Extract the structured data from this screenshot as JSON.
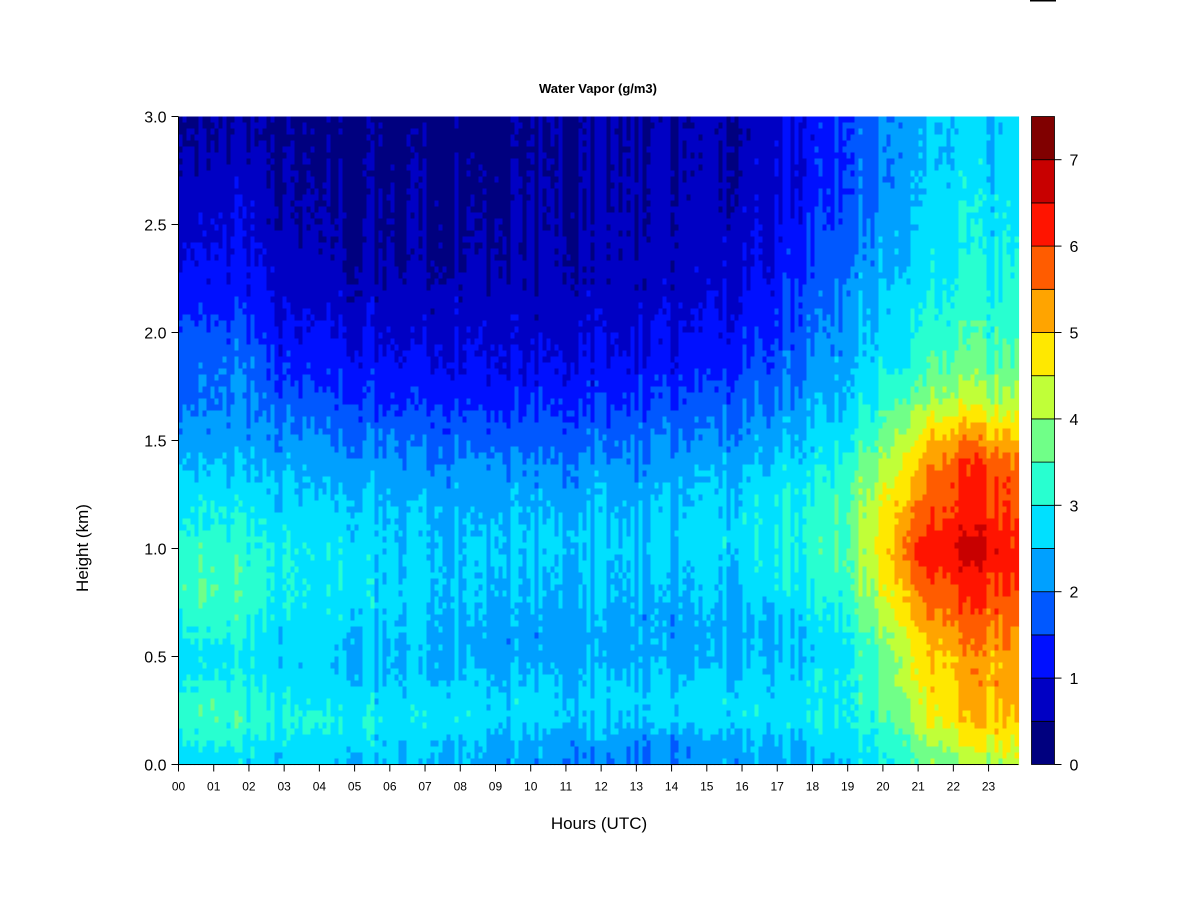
{
  "chart_data": {
    "type": "heatmap",
    "title": "Water Vapor (g/m3)",
    "xlabel": "Hours (UTC)",
    "ylabel": "Height (km)",
    "xlim": [
      0,
      23.85
    ],
    "ylim": [
      0,
      3.0
    ],
    "x_ticks": [
      "00",
      "01",
      "02",
      "03",
      "04",
      "05",
      "06",
      "07",
      "08",
      "09",
      "10",
      "11",
      "12",
      "13",
      "14",
      "15",
      "16",
      "17",
      "18",
      "19",
      "20",
      "21",
      "22",
      "23"
    ],
    "y_ticks": [
      "0.0",
      "0.5",
      "1.0",
      "1.5",
      "2.0",
      "2.5",
      "3.0"
    ],
    "colorbar": {
      "range": [
        0,
        7.5
      ],
      "step": 0.5,
      "ticks": [
        "0",
        "1",
        "2",
        "3",
        "4",
        "5",
        "6",
        "7"
      ],
      "colors": [
        "#00007f",
        "#0000c4",
        "#0010ff",
        "#0058ff",
        "#00a0ff",
        "#00e0ff",
        "#28ffd0",
        "#70ff88",
        "#c0ff38",
        "#ffe800",
        "#ffa400",
        "#ff5c00",
        "#ff1400",
        "#c80000",
        "#800000"
      ]
    },
    "grid": false,
    "hours": [
      0,
      1,
      2,
      3,
      4,
      5,
      6,
      7,
      8,
      9,
      10,
      11,
      12,
      13,
      14,
      15,
      16,
      17,
      18,
      19,
      20,
      21,
      22,
      23,
      23.85
    ],
    "heights": [
      0,
      0.1,
      0.2,
      0.3,
      0.4,
      0.5,
      0.6,
      0.7,
      0.8,
      0.9,
      1.0,
      1.1,
      1.2,
      1.3,
      1.4,
      1.5,
      1.6,
      1.7,
      1.8,
      1.9,
      2.0,
      2.1,
      2.2,
      2.3,
      2.4,
      2.5,
      2.6,
      2.7,
      2.8,
      2.9,
      3.0
    ],
    "profiles": [
      {
        "hour": 0,
        "values": [
          2.8,
          3.0,
          3.2,
          3.2,
          3.0,
          2.8,
          3.0,
          3.2,
          3.4,
          3.4,
          3.3,
          3.1,
          2.9,
          2.7,
          2.5,
          2.3,
          2.1,
          2.0,
          2.0,
          1.9,
          1.7,
          1.5,
          1.3,
          1.2,
          1.0,
          0.9,
          0.8,
          0.7,
          0.6,
          0.6,
          0.5
        ]
      },
      {
        "hour": 1,
        "values": [
          2.8,
          3.1,
          3.5,
          3.5,
          3.1,
          2.9,
          3.2,
          3.5,
          3.6,
          3.5,
          3.4,
          3.1,
          3.0,
          2.8,
          2.6,
          2.4,
          2.2,
          2.0,
          2.0,
          1.9,
          1.7,
          1.5,
          1.3,
          1.2,
          1.1,
          1.0,
          0.9,
          0.8,
          0.7,
          0.6,
          0.5
        ]
      },
      {
        "hour": 2,
        "values": [
          2.7,
          2.9,
          3.2,
          3.1,
          2.9,
          2.8,
          2.9,
          3.1,
          3.2,
          3.2,
          3.1,
          3.0,
          2.8,
          2.6,
          2.4,
          2.2,
          2.1,
          2.0,
          1.9,
          1.8,
          1.6,
          1.4,
          1.2,
          1.1,
          1.0,
          0.9,
          0.8,
          0.7,
          0.6,
          0.5,
          0.5
        ]
      },
      {
        "hour": 3,
        "values": [
          2.6,
          2.8,
          3.0,
          2.9,
          2.7,
          2.6,
          2.7,
          2.8,
          2.9,
          2.9,
          2.9,
          2.8,
          2.6,
          2.5,
          2.3,
          2.1,
          1.9,
          1.6,
          1.4,
          1.2,
          1.0,
          0.9,
          0.8,
          0.7,
          0.6,
          0.5,
          0.5,
          0.4,
          0.4,
          0.3,
          0.3
        ]
      },
      {
        "hour": 4,
        "values": [
          2.6,
          2.8,
          3.0,
          2.8,
          2.6,
          2.6,
          2.7,
          2.8,
          2.8,
          2.8,
          2.8,
          2.7,
          2.6,
          2.4,
          2.2,
          2.0,
          1.8,
          1.5,
          1.3,
          1.2,
          1.0,
          0.9,
          0.7,
          0.6,
          0.5,
          0.5,
          0.4,
          0.4,
          0.3,
          0.3,
          0.3
        ]
      },
      {
        "hour": 5,
        "values": [
          2.6,
          2.8,
          3.0,
          2.8,
          2.6,
          2.5,
          2.6,
          2.7,
          2.8,
          2.8,
          2.8,
          2.7,
          2.6,
          2.4,
          2.2,
          2.0,
          1.7,
          1.5,
          1.3,
          1.1,
          1.0,
          0.8,
          0.7,
          0.6,
          0.5,
          0.5,
          0.4,
          0.4,
          0.4,
          0.3,
          0.3
        ]
      },
      {
        "hour": 6,
        "values": [
          2.6,
          2.7,
          2.9,
          2.8,
          2.6,
          2.5,
          2.6,
          2.7,
          2.7,
          2.7,
          2.7,
          2.6,
          2.5,
          2.4,
          2.2,
          2.0,
          1.7,
          1.4,
          1.3,
          1.1,
          0.9,
          0.8,
          0.7,
          0.6,
          0.5,
          0.5,
          0.5,
          0.4,
          0.4,
          0.4,
          0.3
        ]
      },
      {
        "hour": 7,
        "values": [
          2.5,
          2.7,
          2.9,
          2.8,
          2.6,
          2.5,
          2.6,
          2.6,
          2.7,
          2.7,
          2.6,
          2.6,
          2.5,
          2.3,
          2.1,
          1.9,
          1.7,
          1.4,
          1.2,
          1.1,
          0.9,
          0.8,
          0.7,
          0.6,
          0.5,
          0.5,
          0.5,
          0.5,
          0.4,
          0.4,
          0.4
        ]
      },
      {
        "hour": 8,
        "values": [
          2.5,
          2.6,
          2.9,
          2.8,
          2.6,
          2.4,
          2.4,
          2.5,
          2.6,
          2.6,
          2.6,
          2.5,
          2.4,
          2.3,
          2.1,
          1.9,
          1.6,
          1.4,
          1.2,
          1.0,
          0.9,
          0.8,
          0.7,
          0.6,
          0.5,
          0.5,
          0.4,
          0.4,
          0.4,
          0.3,
          0.3
        ]
      },
      {
        "hour": 9,
        "values": [
          2.3,
          2.4,
          2.7,
          2.7,
          2.5,
          2.3,
          2.3,
          2.4,
          2.5,
          2.5,
          2.6,
          2.5,
          2.4,
          2.3,
          2.1,
          1.8,
          1.6,
          1.3,
          1.1,
          1.0,
          0.9,
          0.8,
          0.7,
          0.6,
          0.5,
          0.5,
          0.4,
          0.4,
          0.3,
          0.3,
          0.3
        ]
      },
      {
        "hour": 10,
        "values": [
          2.2,
          2.3,
          2.7,
          2.7,
          2.5,
          2.3,
          2.2,
          2.3,
          2.4,
          2.5,
          2.6,
          2.5,
          2.4,
          2.2,
          2.0,
          1.8,
          1.5,
          1.3,
          1.1,
          0.9,
          0.8,
          0.7,
          0.6,
          0.6,
          0.5,
          0.5,
          0.5,
          0.5,
          0.4,
          0.4,
          0.4
        ]
      },
      {
        "hour": 11,
        "values": [
          2.1,
          2.2,
          2.6,
          2.6,
          2.5,
          2.3,
          2.3,
          2.4,
          2.5,
          2.5,
          2.6,
          2.5,
          2.4,
          2.2,
          2.0,
          1.8,
          1.6,
          1.3,
          1.1,
          1.0,
          0.9,
          0.8,
          0.7,
          0.6,
          0.6,
          0.5,
          0.5,
          0.5,
          0.5,
          0.5,
          0.5
        ]
      },
      {
        "hour": 12,
        "values": [
          2.0,
          2.2,
          2.6,
          2.7,
          2.5,
          2.3,
          2.3,
          2.4,
          2.5,
          2.5,
          2.6,
          2.5,
          2.4,
          2.3,
          2.1,
          1.8,
          1.6,
          1.4,
          1.2,
          1.0,
          0.9,
          0.8,
          0.7,
          0.6,
          0.6,
          0.6,
          0.5,
          0.5,
          0.5,
          0.5,
          0.5
        ]
      },
      {
        "hour": 13,
        "values": [
          2.0,
          2.1,
          2.6,
          2.7,
          2.5,
          2.3,
          2.3,
          2.3,
          2.4,
          2.5,
          2.6,
          2.5,
          2.4,
          2.3,
          2.1,
          1.9,
          1.7,
          1.4,
          1.2,
          1.0,
          0.9,
          0.8,
          0.7,
          0.7,
          0.6,
          0.6,
          0.6,
          0.6,
          0.5,
          0.5,
          0.5
        ]
      },
      {
        "hour": 14,
        "values": [
          2.1,
          2.1,
          2.6,
          2.7,
          2.5,
          2.3,
          2.3,
          2.3,
          2.4,
          2.5,
          2.6,
          2.6,
          2.5,
          2.4,
          2.2,
          2.0,
          1.8,
          1.5,
          1.3,
          1.1,
          1.0,
          0.9,
          0.8,
          0.7,
          0.7,
          0.7,
          0.6,
          0.6,
          0.6,
          0.5,
          0.5
        ]
      },
      {
        "hour": 15,
        "values": [
          2.2,
          2.3,
          2.7,
          2.8,
          2.6,
          2.3,
          2.3,
          2.4,
          2.5,
          2.6,
          2.7,
          2.7,
          2.6,
          2.5,
          2.3,
          2.1,
          1.9,
          1.6,
          1.4,
          1.2,
          1.1,
          1.0,
          0.9,
          0.8,
          0.7,
          0.7,
          0.7,
          0.6,
          0.6,
          0.6,
          0.6
        ]
      },
      {
        "hour": 16,
        "values": [
          2.3,
          2.4,
          2.8,
          2.8,
          2.6,
          2.4,
          2.4,
          2.5,
          2.6,
          2.7,
          2.8,
          2.8,
          2.7,
          2.6,
          2.4,
          2.2,
          2.0,
          1.8,
          1.6,
          1.4,
          1.3,
          1.1,
          1.0,
          0.9,
          0.9,
          0.8,
          0.7,
          0.7,
          0.7,
          0.6,
          0.6
        ]
      },
      {
        "hour": 17,
        "values": [
          2.3,
          2.5,
          2.8,
          2.8,
          2.7,
          2.5,
          2.5,
          2.6,
          2.8,
          2.9,
          3.0,
          3.0,
          2.9,
          2.8,
          2.6,
          2.4,
          2.2,
          2.0,
          1.8,
          1.7,
          1.5,
          1.4,
          1.3,
          1.2,
          1.1,
          1.0,
          1.0,
          0.9,
          0.9,
          0.9,
          0.9
        ]
      },
      {
        "hour": 18,
        "values": [
          2.3,
          2.6,
          2.9,
          2.9,
          2.8,
          2.6,
          2.7,
          2.8,
          3.0,
          3.1,
          3.2,
          3.2,
          3.1,
          3.0,
          2.8,
          2.6,
          2.4,
          2.3,
          2.1,
          2.0,
          1.9,
          1.8,
          1.7,
          1.6,
          1.5,
          1.4,
          1.3,
          1.2,
          1.2,
          1.2,
          1.2
        ]
      },
      {
        "hour": 19,
        "values": [
          2.6,
          2.8,
          3.0,
          3.0,
          3.0,
          2.9,
          3.0,
          3.2,
          3.4,
          3.5,
          3.6,
          3.6,
          3.5,
          3.4,
          3.2,
          3.0,
          2.8,
          2.6,
          2.5,
          2.4,
          2.3,
          2.2,
          2.1,
          2.0,
          1.9,
          1.8,
          1.7,
          1.6,
          1.6,
          1.6,
          1.6
        ]
      },
      {
        "hour": 20,
        "values": [
          2.9,
          3.1,
          3.3,
          3.5,
          3.6,
          3.7,
          3.9,
          4.2,
          4.4,
          4.6,
          4.8,
          4.7,
          4.5,
          4.3,
          4.0,
          3.7,
          3.4,
          3.2,
          3.0,
          2.8,
          2.7,
          2.6,
          2.5,
          2.4,
          2.3,
          2.2,
          2.1,
          2.0,
          2.0,
          2.0,
          2.0
        ]
      },
      {
        "hour": 21,
        "values": [
          3.6,
          3.9,
          4.3,
          4.5,
          4.7,
          4.8,
          5.0,
          5.3,
          5.6,
          5.9,
          6.2,
          5.9,
          5.6,
          5.4,
          5.1,
          4.7,
          4.3,
          3.8,
          3.5,
          3.3,
          3.1,
          3.0,
          2.9,
          2.8,
          2.7,
          2.7,
          2.6,
          2.6,
          2.5,
          2.5,
          2.5
        ]
      },
      {
        "hour": 22,
        "values": [
          3.9,
          4.3,
          4.8,
          5.0,
          5.1,
          5.2,
          5.4,
          5.8,
          6.0,
          6.3,
          6.6,
          6.3,
          6.1,
          6.1,
          5.9,
          5.4,
          4.8,
          4.2,
          3.8,
          3.6,
          3.4,
          3.2,
          3.1,
          3.0,
          2.9,
          2.9,
          2.8,
          2.8,
          2.7,
          2.7,
          2.7
        ]
      },
      {
        "hour": 23,
        "values": [
          4.1,
          4.5,
          5.0,
          5.2,
          5.3,
          5.3,
          5.5,
          5.8,
          6.0,
          6.3,
          6.5,
          6.3,
          6.0,
          6.1,
          5.9,
          5.3,
          4.7,
          4.1,
          3.8,
          3.5,
          3.3,
          3.2,
          3.1,
          3.0,
          2.9,
          2.8,
          2.8,
          2.7,
          2.7,
          2.6,
          2.6
        ]
      },
      {
        "hour": 23.85,
        "values": [
          4.1,
          4.4,
          4.8,
          5.0,
          5.1,
          5.1,
          5.3,
          5.5,
          5.7,
          5.9,
          6.0,
          5.8,
          5.6,
          5.6,
          5.4,
          4.9,
          4.4,
          3.9,
          3.6,
          3.4,
          3.2,
          3.1,
          3.0,
          2.9,
          2.8,
          2.8,
          2.7,
          2.7,
          2.6,
          2.6,
          2.6
        ]
      }
    ]
  }
}
